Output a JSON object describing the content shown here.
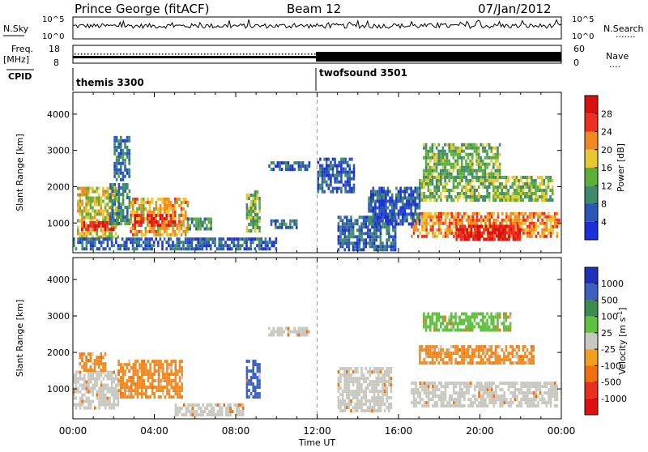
{
  "header": {
    "station": "Prince George (fitACF)",
    "beam": "Beam 12",
    "date": "07/Jan/2012"
  },
  "params": {
    "nsky_label": "N.Sky",
    "nsearch_label": "N.Search",
    "nsearch_dots": ".......",
    "freq_label_line1": "Freq.",
    "freq_label_line2": "[MHz]",
    "nave_label": "Nave",
    "nave_dots": "....",
    "cpid_label": "CPID",
    "nsky_ticks": [
      "10^5",
      "10^0"
    ],
    "nsearch_ticks": [
      "10^5",
      "10^0"
    ],
    "freq_ticks": [
      "18",
      "8"
    ],
    "nave_ticks": [
      "60",
      "0"
    ],
    "cpid_segments": [
      {
        "start_hour": 0,
        "end_hour": 12,
        "label": "themis 3300"
      },
      {
        "start_hour": 12,
        "end_hour": 24,
        "label": "twofsound 3501"
      }
    ]
  },
  "chart_data": [
    {
      "type": "heatmap",
      "name": "power",
      "xlabel": "",
      "ylabel": "Slant Range [km]",
      "xlim": [
        0,
        24
      ],
      "ylim": [
        180,
        4600
      ],
      "yticks": [
        1000,
        2000,
        3000,
        4000
      ],
      "colorbar": {
        "label": "Power [dB]",
        "ticks": [
          4,
          8,
          12,
          16,
          20,
          24,
          28
        ],
        "range": [
          0,
          32
        ],
        "colors": [
          "#1d2fd8",
          "#2a56b8",
          "#3f8a6a",
          "#5cb03a",
          "#e8c830",
          "#f08a20",
          "#ee3020",
          "#d81010"
        ]
      },
      "echo_regions": [
        {
          "t0": 0.2,
          "t1": 2.2,
          "r0": 650,
          "r1": 2000,
          "level": 18
        },
        {
          "t0": 0.4,
          "t1": 2.0,
          "r0": 850,
          "r1": 1050,
          "level": 27
        },
        {
          "t0": 1.8,
          "t1": 2.8,
          "r0": 1000,
          "r1": 2100,
          "level": 9
        },
        {
          "t0": 2.0,
          "t1": 2.8,
          "r0": 2200,
          "r1": 3400,
          "level": 8
        },
        {
          "t0": 2.8,
          "t1": 5.6,
          "r0": 700,
          "r1": 1700,
          "level": 20
        },
        {
          "t0": 3.0,
          "t1": 5.0,
          "r0": 950,
          "r1": 1250,
          "level": 28
        },
        {
          "t0": 5.6,
          "t1": 6.8,
          "r0": 850,
          "r1": 1150,
          "level": 10
        },
        {
          "t0": 0.0,
          "t1": 10.0,
          "r0": 250,
          "r1": 600,
          "level": 6
        },
        {
          "t0": 8.5,
          "t1": 9.2,
          "r0": 750,
          "r1": 1900,
          "level": 14
        },
        {
          "t0": 9.7,
          "t1": 11.0,
          "r0": 900,
          "r1": 1100,
          "level": 8
        },
        {
          "t0": 9.6,
          "t1": 11.6,
          "r0": 2500,
          "r1": 2700,
          "level": 6
        },
        {
          "t0": 12.0,
          "t1": 13.8,
          "r0": 1900,
          "r1": 2800,
          "level": 6
        },
        {
          "t0": 13.0,
          "t1": 15.8,
          "r0": 300,
          "r1": 1200,
          "level": 7
        },
        {
          "t0": 16.6,
          "t1": 23.9,
          "r0": 650,
          "r1": 1300,
          "level": 22
        },
        {
          "t0": 18.8,
          "t1": 22.0,
          "r0": 550,
          "r1": 950,
          "level": 29
        },
        {
          "t0": 17.0,
          "t1": 23.6,
          "r0": 1600,
          "r1": 2300,
          "level": 14
        },
        {
          "t0": 14.5,
          "t1": 17.0,
          "r0": 1000,
          "r1": 2000,
          "level": 6
        },
        {
          "t0": 17.2,
          "t1": 21.0,
          "r0": 2300,
          "r1": 3200,
          "level": 13
        }
      ]
    },
    {
      "type": "heatmap",
      "name": "velocity",
      "xlabel": "Time UT",
      "ylabel": "Slant Range [km]",
      "xlim": [
        0,
        24
      ],
      "ylim": [
        180,
        4600
      ],
      "yticks": [
        1000,
        2000,
        3000,
        4000
      ],
      "xticks": [
        "00:00",
        "04:00",
        "08:00",
        "12:00",
        "16:00",
        "20:00",
        "00:00"
      ],
      "colorbar": {
        "label": "Velocity [m s^-1]",
        "ticks": [
          "1000",
          "500",
          "100",
          "25",
          "-25",
          "-100",
          "-500",
          "-1000"
        ],
        "colors": [
          "#2030b8",
          "#3a60c0",
          "#3c8c50",
          "#60c040",
          "#c8c8c0",
          "#f0a020",
          "#f07010",
          "#e83020",
          "#e01010"
        ]
      },
      "echo_regions": [
        {
          "t0": 0.0,
          "t1": 2.2,
          "r0": 500,
          "r1": 1500,
          "class": "ground"
        },
        {
          "t0": 0.3,
          "t1": 1.6,
          "r0": 1500,
          "r1": 2000,
          "class": "neg_med"
        },
        {
          "t0": 2.2,
          "t1": 5.4,
          "r0": 800,
          "r1": 1800,
          "class": "neg_med"
        },
        {
          "t0": 5.0,
          "t1": 8.4,
          "r0": 250,
          "r1": 600,
          "class": "ground"
        },
        {
          "t0": 8.5,
          "t1": 9.2,
          "r0": 800,
          "r1": 1800,
          "class": "pos_high"
        },
        {
          "t0": 9.6,
          "t1": 11.6,
          "r0": 2500,
          "r1": 2700,
          "class": "ground"
        },
        {
          "t0": 13.0,
          "t1": 15.6,
          "r0": 400,
          "r1": 1600,
          "class": "ground"
        },
        {
          "t0": 16.6,
          "t1": 23.8,
          "r0": 500,
          "r1": 1200,
          "class": "ground"
        },
        {
          "t0": 17.0,
          "t1": 22.6,
          "r0": 1700,
          "r1": 2200,
          "class": "neg_med"
        },
        {
          "t0": 17.2,
          "t1": 21.5,
          "r0": 2600,
          "r1": 3100,
          "class": "pos_low"
        }
      ]
    }
  ],
  "time_axis": {
    "xticks": [
      "00:00",
      "04:00",
      "08:00",
      "12:00",
      "16:00",
      "20:00",
      "00:00"
    ],
    "xlabel": "Time UT"
  }
}
